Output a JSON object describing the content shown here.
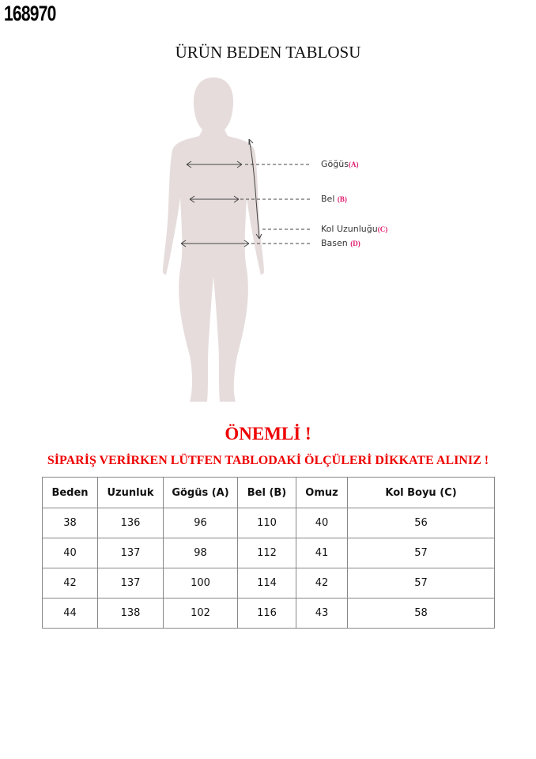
{
  "product_code": "168970",
  "title": "ÜRÜN BEDEN TABLOSU",
  "figure": {
    "color": "#e6dcdc",
    "labels": [
      {
        "name": "Göğüs",
        "code": "(A)"
      },
      {
        "name": "Bel",
        "code": "(B)"
      },
      {
        "name": "Kol Uzunluğu",
        "code": "(C)"
      },
      {
        "name": "Basen",
        "code": "(D)"
      }
    ]
  },
  "important": "ÖNEMLİ !",
  "warning": "SİPARİŞ VERİRKEN LÜTFEN TABLODAKİ ÖLÇÜLERİ DİKKATE ALINIZ !",
  "table": {
    "headers": [
      "Beden",
      "Uzunluk",
      "Gögüs (A)",
      "Bel (B)",
      "Omuz",
      "Kol Boyu (C)"
    ],
    "rows": [
      [
        "38",
        "136",
        "96",
        "110",
        "40",
        "56"
      ],
      [
        "40",
        "137",
        "98",
        "112",
        "41",
        "57"
      ],
      [
        "42",
        "137",
        "100",
        "114",
        "42",
        "57"
      ],
      [
        "44",
        "138",
        "102",
        "116",
        "43",
        "58"
      ]
    ]
  }
}
